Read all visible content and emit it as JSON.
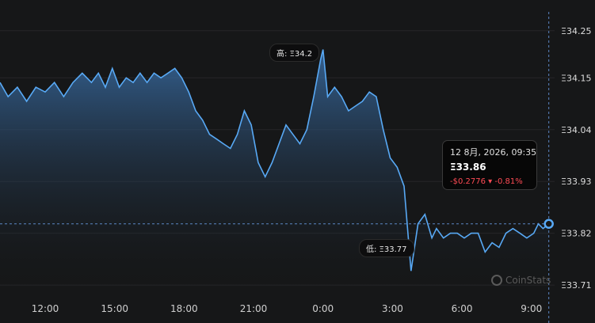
{
  "chart_data": {
    "type": "area",
    "title": "",
    "xlabel": "",
    "ylabel": "",
    "currency_symbol": "Ξ",
    "x_ticks": [
      "12:00",
      "15:00",
      "18:00",
      "21:00",
      "0:00",
      "3:00",
      "6:00",
      "9:00"
    ],
    "x_tick_hours": [
      12,
      15,
      18,
      21,
      24,
      27,
      30,
      33
    ],
    "y_ticks": [
      "Ξ34.25",
      "Ξ34.15",
      "Ξ34.04",
      "Ξ33.93",
      "Ξ33.82",
      "Ξ33.71"
    ],
    "y_tick_values": [
      34.25,
      34.15,
      34.04,
      33.93,
      33.82,
      33.71
    ],
    "xlim": [
      10.05,
      34.0
    ],
    "ylim": [
      33.69,
      34.29
    ],
    "series": [
      {
        "x": [
          10.05,
          10.4,
          10.8,
          11.2,
          11.6,
          12.0,
          12.4,
          12.8,
          13.2,
          13.6,
          14.0,
          14.3,
          14.6,
          14.9,
          15.2,
          15.5,
          15.8,
          16.1,
          16.4,
          16.7,
          17.0,
          17.3,
          17.6,
          17.9,
          18.2,
          18.5,
          18.8,
          19.1,
          19.4,
          19.7,
          20.0,
          20.3,
          20.6,
          20.9,
          21.2,
          21.5,
          21.8,
          22.1,
          22.4,
          22.7,
          23.0,
          23.3,
          23.6,
          23.9,
          24.0,
          24.2,
          24.5,
          24.8,
          25.1,
          25.4,
          25.7,
          26.0,
          26.3,
          26.6,
          26.9,
          27.2,
          27.5,
          27.8,
          28.1,
          28.4,
          28.7,
          28.9,
          29.2,
          29.5,
          29.8,
          30.1,
          30.4,
          30.7,
          31.0,
          31.3,
          31.6,
          31.9,
          32.2,
          32.5,
          32.8,
          33.1,
          33.3,
          33.5,
          33.75
        ],
        "values": [
          34.14,
          34.11,
          34.13,
          34.1,
          34.13,
          34.12,
          34.14,
          34.11,
          34.14,
          34.16,
          34.14,
          34.16,
          34.13,
          34.17,
          34.13,
          34.15,
          34.14,
          34.16,
          34.14,
          34.16,
          34.15,
          34.16,
          34.17,
          34.15,
          34.12,
          34.08,
          34.06,
          34.03,
          34.02,
          34.01,
          34.0,
          34.03,
          34.08,
          34.05,
          33.97,
          33.94,
          33.97,
          34.01,
          34.05,
          34.03,
          34.01,
          34.04,
          34.11,
          34.19,
          34.21,
          34.11,
          34.13,
          34.11,
          34.08,
          34.09,
          34.1,
          34.12,
          34.11,
          34.04,
          33.98,
          33.96,
          33.92,
          33.74,
          33.84,
          33.86,
          33.81,
          33.83,
          33.81,
          33.82,
          33.82,
          33.81,
          33.82,
          33.82,
          33.78,
          33.8,
          33.79,
          33.82,
          33.83,
          33.82,
          33.81,
          33.82,
          33.84,
          33.83,
          33.84
        ]
      }
    ],
    "high_label": "高: Ξ34.2",
    "low_label": "低: Ξ33.77",
    "grid": true,
    "tooltip": {
      "date": "12 8月, 2026, 09:35",
      "price": "Ξ33.86",
      "change": "-$0.2776 ▾ -0.81%"
    },
    "watermark": "CoinStats",
    "colors": {
      "line": "#58a9f5",
      "area_top": "#3a6fa8",
      "area_bottom": "#161718",
      "down": "#ff4b55"
    }
  }
}
